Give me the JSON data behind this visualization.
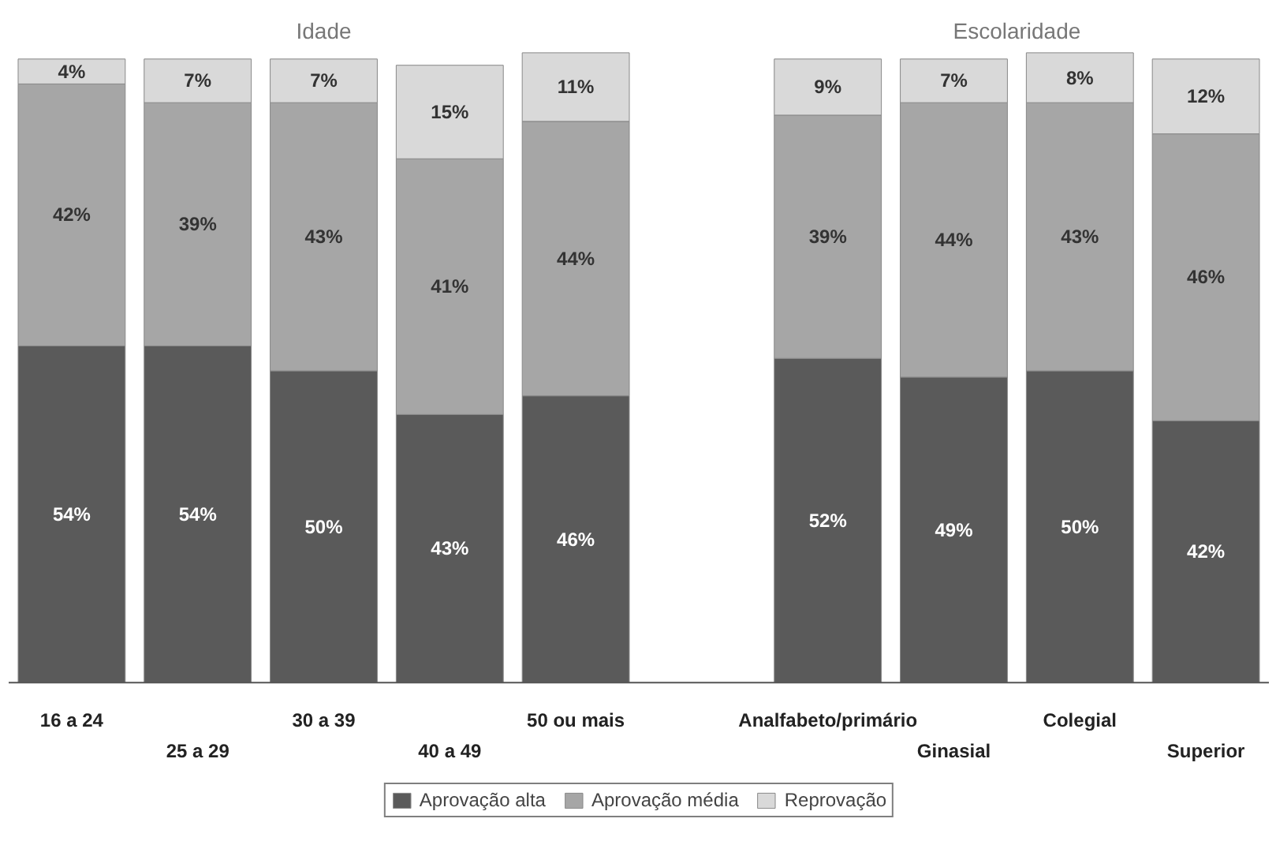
{
  "chart_data": {
    "type": "bar",
    "stacked": true,
    "categories": [
      "16 a 24",
      "25 a 29",
      "30 a 39",
      "40 a 49",
      "50 ou mais",
      null,
      "Analfabeto/primário",
      "Ginasial",
      "Colegial",
      "Superior"
    ],
    "series": [
      {
        "name": "Aprovação alta",
        "color": "#5a5a5a",
        "values": [
          54,
          54,
          50,
          43,
          46,
          null,
          52,
          49,
          50,
          42
        ],
        "value_labels": [
          "54%",
          "54%",
          "50%",
          "43%",
          "46%",
          null,
          "52%",
          "49%",
          "50%",
          "42%"
        ]
      },
      {
        "name": "Aprovação média",
        "color": "#a6a6a6",
        "values": [
          42,
          39,
          43,
          41,
          44,
          null,
          39,
          44,
          43,
          46
        ],
        "value_labels": [
          "42%",
          "39%",
          "43%",
          "41%",
          "44%",
          null,
          "39%",
          "44%",
          "43%",
          "46%"
        ]
      },
      {
        "name": "Reprovação",
        "color": "#d9d9d9",
        "values": [
          4,
          7,
          7,
          15,
          11,
          null,
          9,
          7,
          8,
          12
        ],
        "value_labels": [
          "4%",
          "7%",
          "7%",
          "15%",
          "11%",
          null,
          "9%",
          "7%",
          "8%",
          "12%"
        ]
      }
    ],
    "annotations": [
      "Idade",
      "Escolaridade"
    ],
    "legend": "bottom"
  }
}
